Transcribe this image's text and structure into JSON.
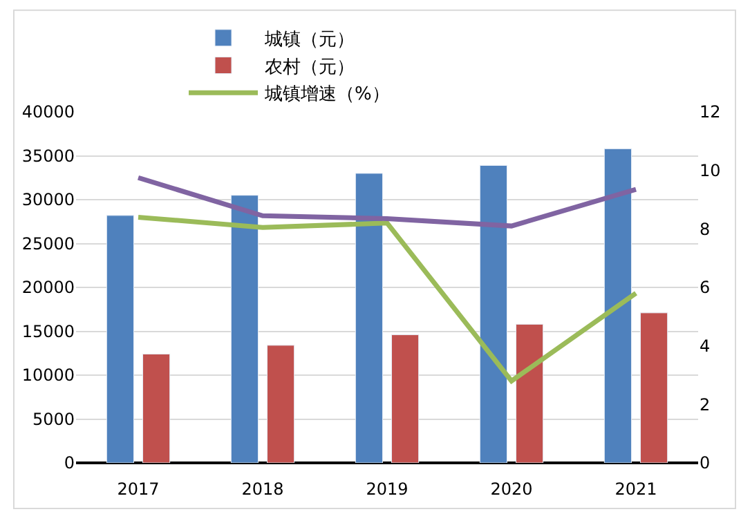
{
  "chart_data": {
    "type": "bar",
    "categories": [
      "2017",
      "2018",
      "2019",
      "2020",
      "2021"
    ],
    "series": [
      {
        "name": "城镇（元）",
        "color": "#4f81bd",
        "values": [
          28200,
          30500,
          33000,
          33900,
          35800
        ]
      },
      {
        "name": "农村（元）",
        "color": "#c0504d",
        "values": [
          12400,
          13400,
          14600,
          15800,
          17100
        ]
      },
      {
        "name": "城镇增速（%）",
        "type": "line",
        "axis": "y2",
        "color": "#9bbb59",
        "values": [
          8.4,
          8.05,
          8.2,
          2.8,
          5.8
        ]
      },
      {
        "type": "line",
        "axis": "y2",
        "color": "#8064a2",
        "values": [
          9.75,
          8.45,
          8.35,
          8.1,
          9.35
        ]
      }
    ],
    "ylim": [
      0,
      40000
    ],
    "yticks": [
      0,
      5000,
      10000,
      15000,
      20000,
      25000,
      30000,
      35000,
      40000
    ],
    "y2lim": [
      0,
      12
    ],
    "y2ticks": [
      0,
      2,
      4,
      6,
      8,
      10,
      12
    ],
    "grid": "y",
    "legend": "top",
    "marker": "none",
    "line_style": "solid"
  }
}
